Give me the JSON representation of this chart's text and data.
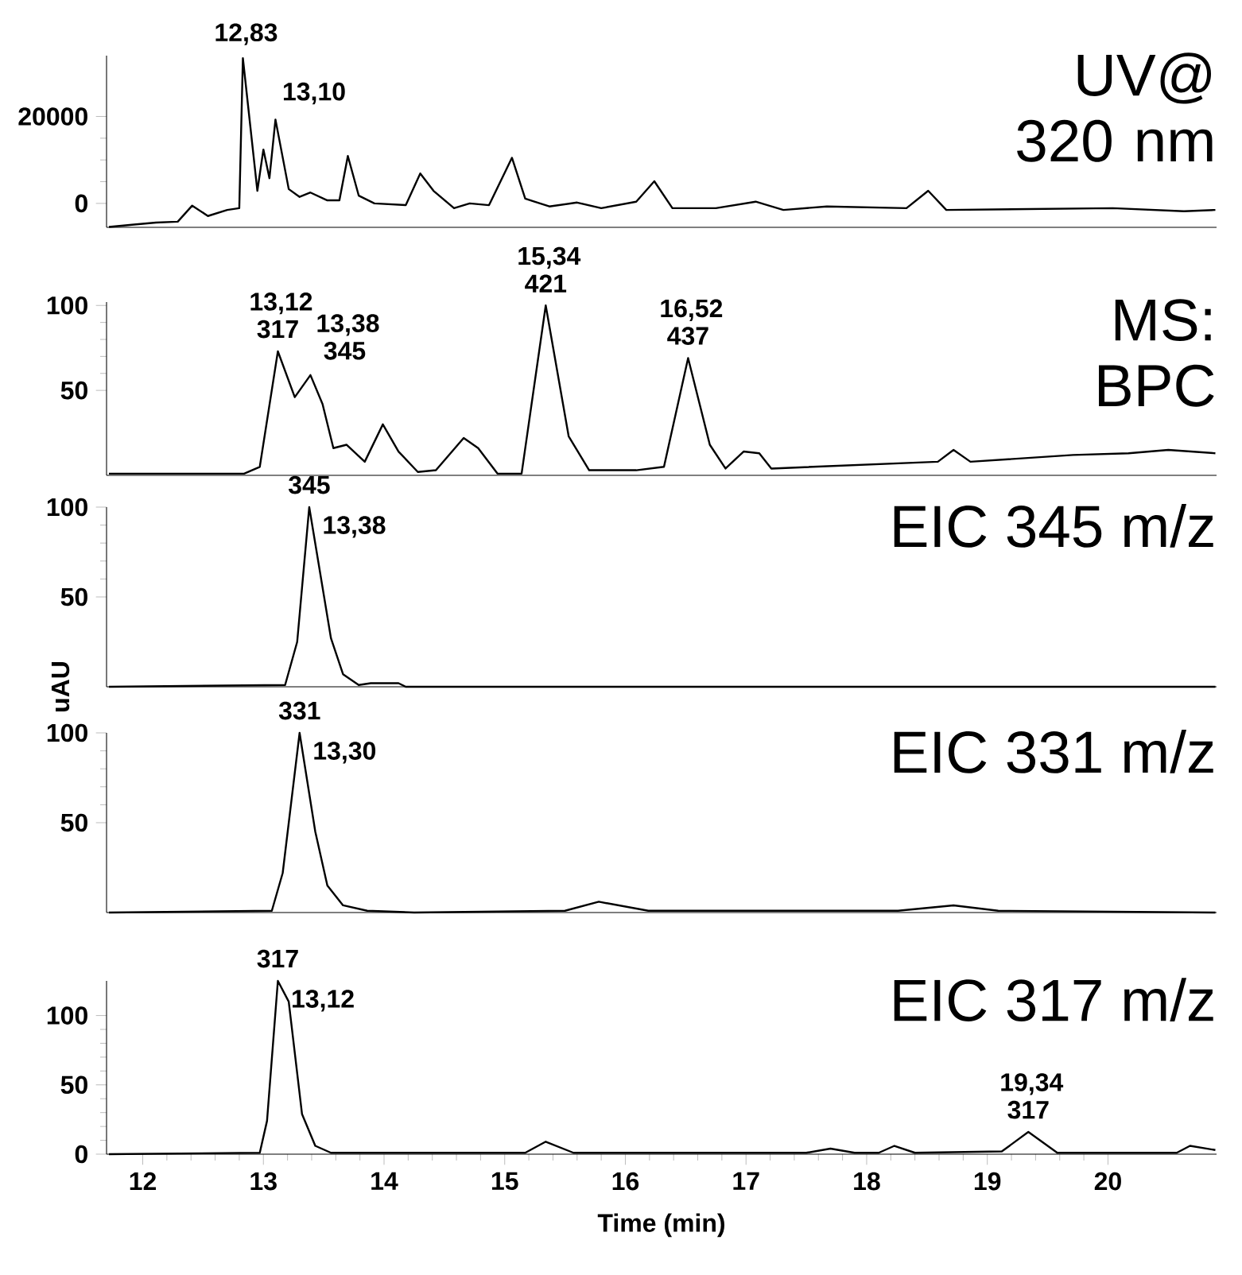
{
  "chart_data": [
    {
      "type": "line",
      "title": "UV@ 320 nm",
      "color": "#000000",
      "xlim": [
        11.7,
        20.9
      ],
      "ylim": [
        -5500,
        34000
      ],
      "xticks": [
        12,
        13,
        14,
        15,
        16,
        17,
        18,
        19,
        20
      ],
      "yticks": [
        0,
        20000
      ],
      "tick_labels": "y",
      "x": [
        11.72,
        11.91,
        12.11,
        12.29,
        12.41,
        12.54,
        12.7,
        12.8,
        12.83,
        12.95,
        13.0,
        13.05,
        13.1,
        13.21,
        13.3,
        13.39,
        13.53,
        13.63,
        13.7,
        13.79,
        13.92,
        14.18,
        14.3,
        14.41,
        14.58,
        14.71,
        14.87,
        15.06,
        15.17,
        15.37,
        15.6,
        15.8,
        16.09,
        16.24,
        16.39,
        16.75,
        17.08,
        17.31,
        17.67,
        18.33,
        18.51,
        18.66,
        20.04,
        20.63,
        20.89
      ],
      "values": [
        -5400,
        -4900,
        -4400,
        -4200,
        -500,
        -2900,
        -1500,
        -1100,
        33400,
        2900,
        12400,
        5800,
        19300,
        3300,
        1500,
        2500,
        700,
        700,
        10900,
        1800,
        0,
        -400,
        6900,
        2900,
        -1100,
        0,
        -400,
        10500,
        1100,
        -700,
        200,
        -1100,
        400,
        5100,
        -1100,
        -1100,
        400,
        -1500,
        -700,
        -1100,
        2900,
        -1500,
        -1100,
        -1800,
        -1500
      ],
      "annotations": [
        {
          "text": "12,83",
          "x": 12.83,
          "y": 33400
        },
        {
          "text": "13,10",
          "x": 13.1,
          "y": 19300
        }
      ]
    },
    {
      "type": "line",
      "title": "MS: BPC",
      "color": "#000000",
      "xlim": [
        11.7,
        20.9
      ],
      "ylim": [
        0,
        102
      ],
      "xticks": [
        12,
        13,
        14,
        15,
        16,
        17,
        18,
        19,
        20
      ],
      "yticks": [
        50,
        100
      ],
      "tick_labels": "y",
      "x": [
        11.72,
        12.84,
        12.97,
        13.12,
        13.26,
        13.39,
        13.49,
        13.58,
        13.69,
        13.84,
        13.99,
        14.12,
        14.28,
        14.43,
        14.66,
        14.78,
        14.94,
        15.14,
        15.34,
        15.53,
        15.7,
        16.09,
        16.32,
        16.52,
        16.7,
        16.83,
        16.98,
        17.11,
        17.21,
        18.59,
        18.72,
        18.86,
        19.71,
        20.17,
        20.5,
        20.89
      ],
      "values": [
        1,
        1,
        5,
        73,
        46,
        59,
        42,
        16,
        18,
        8,
        30,
        14,
        2,
        3,
        22,
        16,
        1,
        1,
        100,
        23,
        3,
        3,
        5,
        69,
        18,
        4,
        14,
        13,
        4,
        8,
        15,
        8,
        12,
        13,
        15,
        13
      ],
      "annotations": [
        {
          "text": "13,12 317",
          "x": 13.12,
          "y": 73
        },
        {
          "text": "13,38 345",
          "x": 13.38,
          "y": 59
        },
        {
          "text": "15,34 421",
          "x": 15.34,
          "y": 100
        },
        {
          "text": "16,52 437",
          "x": 16.52,
          "y": 69
        }
      ]
    },
    {
      "type": "line",
      "title": "EIC 345 m/z",
      "ylabel": "uAU",
      "color": "#000000",
      "xlim": [
        11.7,
        20.9
      ],
      "ylim": [
        0,
        100
      ],
      "xticks": [
        12,
        13,
        14,
        15,
        16,
        17,
        18,
        19,
        20
      ],
      "yticks": [
        50,
        100
      ],
      "tick_labels": "y",
      "x": [
        11.72,
        13.18,
        13.28,
        13.38,
        13.56,
        13.66,
        13.79,
        13.89,
        14.12,
        14.18,
        20.89
      ],
      "values": [
        0,
        1,
        25,
        100,
        27,
        7,
        1,
        2,
        2,
        0,
        0
      ],
      "annotations": [
        {
          "text": "345",
          "x": 13.38,
          "y": 100
        },
        {
          "text": "13,38",
          "x": 13.38,
          "y": 100
        }
      ]
    },
    {
      "type": "line",
      "title": "EIC 331 m/z",
      "color": "#000000",
      "xlim": [
        11.7,
        20.9
      ],
      "ylim": [
        0,
        100
      ],
      "xticks": [
        12,
        13,
        14,
        15,
        16,
        17,
        18,
        19,
        20
      ],
      "yticks": [
        50,
        100
      ],
      "tick_labels": "y",
      "x": [
        11.72,
        13.07,
        13.16,
        13.3,
        13.43,
        13.53,
        13.66,
        13.86,
        14.25,
        15.5,
        15.78,
        16.19,
        18.26,
        18.72,
        19.09,
        20.89
      ],
      "values": [
        0,
        1,
        22,
        100,
        45,
        15,
        4,
        1,
        0,
        1,
        6,
        1,
        1,
        4,
        1,
        0
      ],
      "annotations": [
        {
          "text": "331",
          "x": 13.3,
          "y": 100
        },
        {
          "text": "13,30",
          "x": 13.3,
          "y": 100
        }
      ]
    },
    {
      "type": "line",
      "title": "EIC 317 m/z",
      "xlabel": "Time (min)",
      "color": "#000000",
      "xlim": [
        11.7,
        20.9
      ],
      "ylim": [
        0,
        125
      ],
      "xticks": [
        12,
        13,
        14,
        15,
        16,
        17,
        18,
        19,
        20
      ],
      "yticks": [
        0,
        50,
        100
      ],
      "x": [
        11.72,
        12.97,
        13.03,
        13.12,
        13.21,
        13.32,
        13.43,
        13.56,
        15.17,
        15.34,
        15.57,
        17.5,
        17.7,
        17.9,
        18.1,
        18.23,
        18.4,
        19.12,
        19.34,
        19.58,
        20.57,
        20.68,
        20.89
      ],
      "values": [
        0,
        1,
        24,
        125,
        110,
        29,
        6,
        1,
        1,
        9,
        1,
        1,
        4,
        1,
        1,
        6,
        1,
        2,
        16,
        1,
        1,
        6,
        3
      ],
      "annotations": [
        {
          "text": "317",
          "x": 13.12,
          "y": 125
        },
        {
          "text": "13,12",
          "x": 13.12,
          "y": 125
        },
        {
          "text": "19,34 317",
          "x": 19.34,
          "y": 16
        }
      ]
    }
  ]
}
